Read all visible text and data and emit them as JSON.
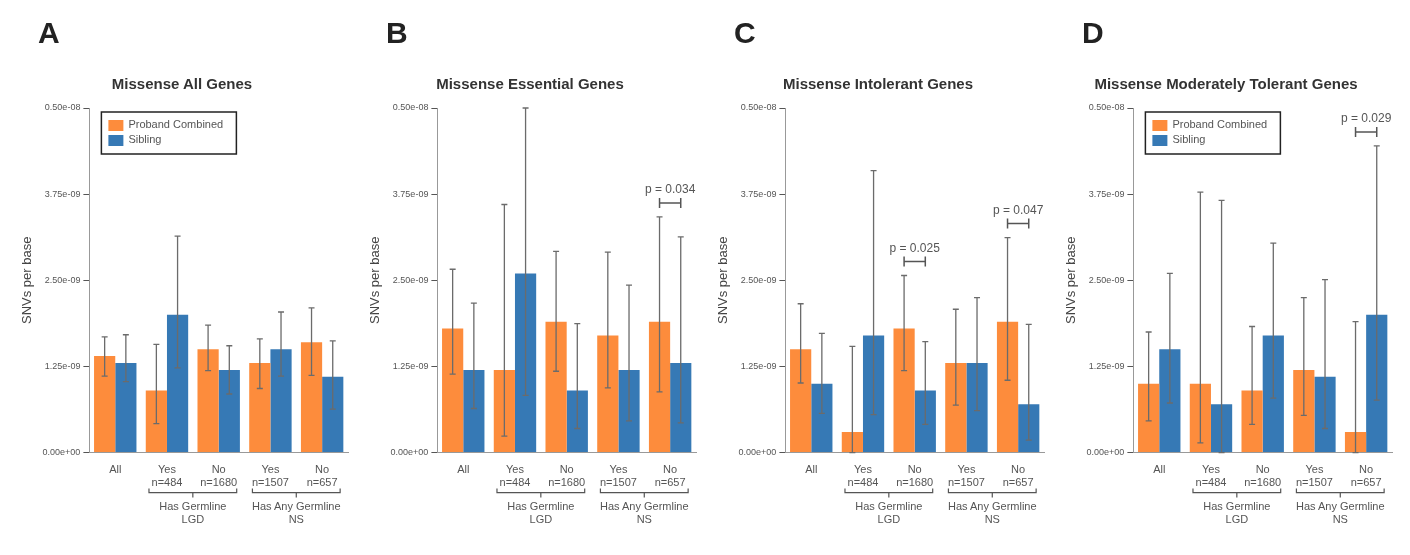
{
  "chart_data": [
    {
      "type": "bar",
      "title": "Missense All Genes",
      "ylabel": "SNVs per base",
      "categories": [
        "All",
        "Yes\nn=484",
        "No\nn=1680",
        "Yes\nn=1507",
        "No\nn=657"
      ],
      "series": [
        {
          "name": "Proband Combined",
          "color": "#fd8c3c",
          "values": [
            1.4e-09,
            9e-10,
            1.5e-09,
            1.3e-09,
            1.6e-09
          ],
          "errors": [
            [
              1.11e-09,
              1.68e-09
            ],
            [
              4.2e-10,
              1.57e-09
            ],
            [
              1.19e-09,
              1.85e-09
            ],
            [
              9.3e-10,
              1.65e-09
            ],
            [
              1.12e-09,
              2.1e-09
            ]
          ]
        },
        {
          "name": "Sibling",
          "color": "#3679b5",
          "values": [
            1.3e-09,
            2e-09,
            1.2e-09,
            1.5e-09,
            1.1e-09
          ],
          "errors": [
            [
              1.03e-09,
              1.71e-09
            ],
            [
              1.23e-09,
              3.14e-09
            ],
            [
              8.5e-10,
              1.55e-09
            ],
            [
              1.11e-09,
              2.04e-09
            ],
            [
              6.3e-10,
              1.62e-09
            ]
          ]
        }
      ],
      "ylim": [
        0,
        5e-09
      ],
      "yticks": [
        {
          "value": 0,
          "label": "0.00e+00"
        },
        {
          "value": 1.25e-09,
          "label": "1.25e-09"
        },
        {
          "value": 2.5e-09,
          "label": "2.50e-09"
        },
        {
          "value": 3.75e-09,
          "label": "3.75e-09"
        },
        {
          "value": 5e-09,
          "label": "0.50e-08"
        }
      ],
      "legend": "top left",
      "annotations": [
        "A",
        "Has Germline LGD",
        "Has Any Germline NS"
      ]
    },
    {
      "type": "bar",
      "title": "Missense Essential Genes",
      "ylabel": "SNVs per base",
      "categories": [
        "All",
        "Yes\nn=484",
        "No\nn=1680",
        "Yes\nn=1507",
        "No\nn=657"
      ],
      "series": [
        {
          "color": "#fd8c3c",
          "values": [
            1.8e-09,
            1.2e-09,
            1.9e-09,
            1.7e-09,
            1.9e-09
          ],
          "errors": [
            [
              1.14e-09,
              2.66e-09
            ],
            [
              2.4e-10,
              3.6e-09
            ],
            [
              1.18e-09,
              2.92e-09
            ],
            [
              9.4e-10,
              2.91e-09
            ],
            [
              8.8e-10,
              3.42e-09
            ]
          ]
        },
        {
          "color": "#3679b5",
          "values": [
            1.2e-09,
            2.6e-09,
            9e-10,
            1.2e-09,
            1.3e-09
          ],
          "errors": [
            [
              6.4e-10,
              2.17e-09
            ],
            [
              8.3e-10,
              5e-09
            ],
            [
              3.5e-10,
              1.87e-09
            ],
            [
              4.6e-10,
              2.43e-09
            ],
            [
              4.3e-10,
              3.13e-09
            ]
          ]
        }
      ],
      "ylim": [
        0,
        5e-09
      ],
      "yticks": [
        {
          "value": 0,
          "label": "0.00e+00"
        },
        {
          "value": 1.25e-09,
          "label": "1.25e-09"
        },
        {
          "value": 2.5e-09,
          "label": "2.50e-09"
        },
        {
          "value": 3.75e-09,
          "label": "3.75e-09"
        },
        {
          "value": 5e-09,
          "label": "0.50e-08"
        }
      ],
      "annotations": [
        "B",
        "Has Germline LGD",
        "Has Any Germline NS",
        "p = 0.034"
      ]
    },
    {
      "type": "bar",
      "title": "Missense Intolerant Genes",
      "ylabel": "SNVs per base",
      "categories": [
        "All",
        "Yes\nn=484",
        "No\nn=1680",
        "Yes\nn=1507",
        "No\nn=657"
      ],
      "series": [
        {
          "color": "#fd8c3c",
          "values": [
            1.5e-09,
            3e-10,
            1.8e-09,
            1.3e-09,
            1.9e-09
          ],
          "errors": [
            [
              1.01e-09,
              2.16e-09
            ],
            [
              0,
              1.54e-09
            ],
            [
              1.19e-09,
              2.57e-09
            ],
            [
              6.9e-10,
              2.08e-09
            ],
            [
              1.05e-09,
              3.12e-09
            ]
          ]
        },
        {
          "color": "#3679b5",
          "values": [
            1e-09,
            1.7e-09,
            9e-10,
            1.3e-09,
            7e-10
          ],
          "errors": [
            [
              5.7e-10,
              1.73e-09
            ],
            [
              5.5e-10,
              4.09e-09
            ],
            [
              4.1e-10,
              1.61e-09
            ],
            [
              6.1e-10,
              2.25e-09
            ],
            [
              1.8e-10,
              1.86e-09
            ]
          ]
        }
      ],
      "ylim": [
        0,
        5e-09
      ],
      "yticks": [
        {
          "value": 0,
          "label": "0.00e+00"
        },
        {
          "value": 1.25e-09,
          "label": "1.25e-09"
        },
        {
          "value": 2.5e-09,
          "label": "2.50e-09"
        },
        {
          "value": 3.75e-09,
          "label": "3.75e-09"
        },
        {
          "value": 5e-09,
          "label": "0.50e-08"
        }
      ],
      "annotations": [
        "C",
        "Has Germline LGD",
        "Has Any Germline NS",
        "p = 0.025",
        "p = 0.047"
      ]
    },
    {
      "type": "bar",
      "title": "Missense Moderately Tolerant Genes",
      "ylabel": "SNVs per base",
      "categories": [
        "All",
        "Yes\nn=484",
        "No\nn=1680",
        "Yes\nn=1507",
        "No\nn=657"
      ],
      "series": [
        {
          "name": "Proband Combined",
          "color": "#fd8c3c",
          "values": [
            1e-09,
            1e-09,
            9e-10,
            1.2e-09,
            3e-10
          ],
          "errors": [
            [
              4.6e-10,
              1.75e-09
            ],
            [
              1.4e-10,
              3.78e-09
            ],
            [
              4.1e-10,
              1.83e-09
            ],
            [
              5.4e-10,
              2.25e-09
            ],
            [
              0,
              1.9e-09
            ]
          ]
        },
        {
          "name": "Sibling",
          "color": "#3679b5",
          "values": [
            1.5e-09,
            7e-10,
            1.7e-09,
            1.1e-09,
            2e-09
          ],
          "errors": [
            [
              7.2e-10,
              2.6e-09
            ],
            [
              0,
              3.66e-09
            ],
            [
              7.9e-10,
              3.04e-09
            ],
            [
              3.5e-10,
              2.51e-09
            ],
            [
              7.6e-10,
              4.45e-09
            ]
          ]
        }
      ],
      "ylim": [
        0,
        5e-09
      ],
      "yticks": [
        {
          "value": 0,
          "label": "0.00e+00"
        },
        {
          "value": 1.25e-09,
          "label": "1.25e-09"
        },
        {
          "value": 2.5e-09,
          "label": "2.50e-09"
        },
        {
          "value": 3.75e-09,
          "label": "3.75e-09"
        },
        {
          "value": 5e-09,
          "label": "0.50e-08"
        }
      ],
      "legend": "top left",
      "annotations": [
        "D",
        "Has Germline LGD",
        "Has Any Germline NS",
        "p = 0.029"
      ]
    }
  ]
}
